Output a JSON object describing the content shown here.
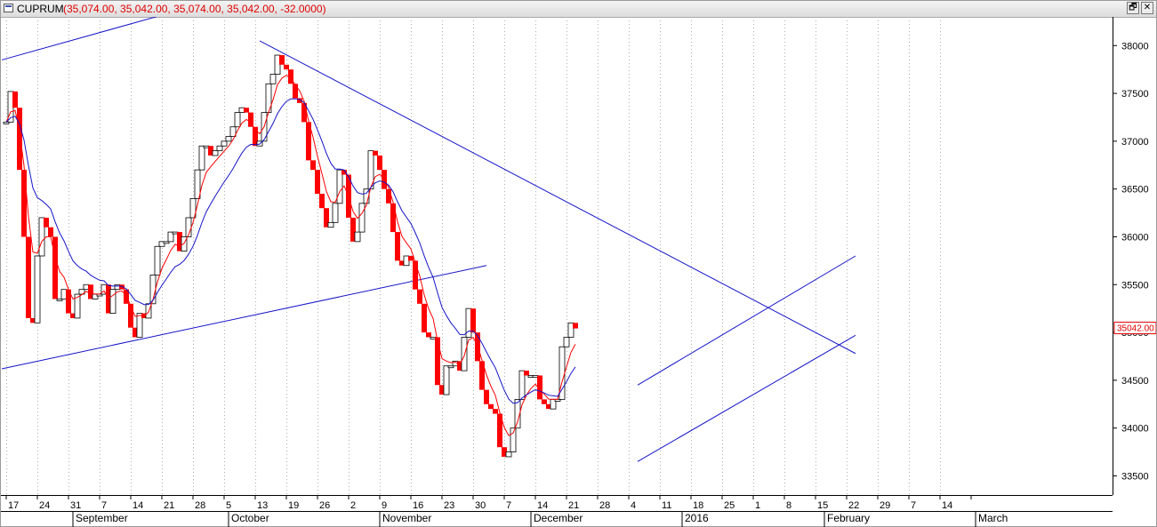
{
  "window": {
    "symbol": "CUPRUM",
    "ohlc_text": "(35,074.00, 35,042.00, 35,074.00, 35,042.00, -32.0000)",
    "restore_glyph": "🗗",
    "close_glyph": "✕"
  },
  "colors": {
    "up_candle": "#ffffff",
    "down_candle": "#ff0000",
    "ema_fast": "#ff0000",
    "ema_slow": "#1414c8",
    "trendline": "#1414c8",
    "grid": "#b0b0b0"
  },
  "chart_data": {
    "type": "candlestick",
    "title": "CUPRUM",
    "ylim": [
      33300,
      38300
    ],
    "y_ticks": [
      33500,
      34000,
      34500,
      35000,
      35500,
      36000,
      36500,
      37000,
      37500,
      38000
    ],
    "y_tick_labels": [
      "33500",
      "34000",
      "34500",
      "35000",
      "35500",
      "36000",
      "36500",
      "37000",
      "37500",
      "38000"
    ],
    "last_price_label": "35042.00",
    "last_price": 35042,
    "x_week_labels": [
      "17",
      "24",
      "31",
      "7",
      "14",
      "21",
      "28",
      "5",
      "13",
      "19",
      "26",
      "2",
      "9",
      "16",
      "23",
      "30",
      "7",
      "14",
      "21",
      "28",
      "4",
      "11",
      "18",
      "25",
      "1",
      "8",
      "15",
      "22",
      "29",
      "7",
      "14"
    ],
    "month_labels": [
      {
        "label": "September",
        "bar": 15
      },
      {
        "label": "October",
        "bar": 50
      },
      {
        "label": "November",
        "bar": 84
      },
      {
        "label": "December",
        "bar": 118
      },
      {
        "label": "2016",
        "bar": 152
      },
      {
        "label": "February",
        "bar": 184
      },
      {
        "label": "March",
        "bar": 218
      }
    ],
    "grid": "vertical-dotted",
    "closes": [
      37200,
      37520,
      37350,
      36700,
      36000,
      35150,
      35100,
      35800,
      36200,
      36100,
      36000,
      35350,
      35350,
      35450,
      35200,
      35150,
      35400,
      35450,
      35500,
      35350,
      35400,
      35400,
      35500,
      35200,
      35450,
      35500,
      35450,
      35300,
      35050,
      34950,
      35200,
      35150,
      35300,
      35600,
      35900,
      35950,
      35950,
      36050,
      36050,
      35850,
      36000,
      36200,
      36400,
      36700,
      36950,
      36950,
      36850,
      36900,
      36950,
      37000,
      37050,
      37150,
      37300,
      37350,
      37300,
      37150,
      36950,
      37000,
      37300,
      37600,
      37700,
      37900,
      37800,
      37750,
      37600,
      37450,
      37400,
      37200,
      36800,
      36700,
      36450,
      36300,
      36100,
      36150,
      36350,
      36700,
      36650,
      36200,
      35950,
      36050,
      36350,
      36500,
      36900,
      36850,
      36700,
      36500,
      36350,
      36050,
      35750,
      35700,
      35800,
      35750,
      35450,
      35300,
      35000,
      34950,
      34950,
      34450,
      34350,
      34650,
      34650,
      34700,
      34600,
      34950,
      35250,
      35000,
      34700,
      34400,
      34250,
      34200,
      34150,
      33800,
      33700,
      33750,
      34000,
      34300,
      34600,
      34550,
      34550,
      34550,
      34300,
      34250,
      34200,
      34300,
      34300,
      34850,
      34950,
      35100,
      35042
    ],
    "series": [
      {
        "name": "",
        "type": "candlestick",
        "values": [
          37200,
          37520,
          37350,
          36700,
          36000,
          35150,
          35100,
          35800,
          36200,
          36100,
          36000,
          35350,
          35350,
          35450,
          35200,
          35150,
          35400,
          35450,
          35500,
          35350,
          35400,
          35400,
          35500,
          35200,
          35450,
          35500,
          35450,
          35300,
          35050,
          34950,
          35200,
          35150,
          35300,
          35600,
          35900,
          35950,
          35950,
          36050,
          36050,
          35850,
          36000,
          36200,
          36400,
          36700,
          36950,
          36950,
          36850,
          36900,
          36950,
          37000,
          37050,
          37150,
          37300,
          37350,
          37300,
          37150,
          36950,
          37000,
          37300,
          37600,
          37700,
          37900,
          37800,
          37750,
          37600,
          37450,
          37400,
          37200,
          36800,
          36700,
          36450,
          36300,
          36100,
          36150,
          36350,
          36700,
          36650,
          36200,
          35950,
          36050,
          36350,
          36500,
          36900,
          36850,
          36700,
          36500,
          36350,
          36050,
          35750,
          35700,
          35800,
          35750,
          35450,
          35300,
          35000,
          34950,
          34950,
          34450,
          34350,
          34650,
          34650,
          34700,
          34600,
          34950,
          35250,
          35000,
          34700,
          34400,
          34250,
          34200,
          34150,
          33800,
          33700,
          33750,
          34000,
          34300,
          34600,
          34550,
          34550,
          34550,
          34300,
          34250,
          34200,
          34300,
          34300,
          34850,
          34950,
          35100,
          35042
        ]
      },
      {
        "name": "",
        "type": "ema",
        "period": 5
      },
      {
        "name": "",
        "type": "ema",
        "period": 13
      }
    ],
    "trendlines": [
      {
        "from": [
          -1,
          37850
        ],
        "to": [
          39,
          38370
        ]
      },
      {
        "from": [
          -1,
          34620
        ],
        "to": [
          108,
          35700
        ]
      },
      {
        "from": [
          57,
          38050
        ],
        "to": [
          191,
          34780
        ]
      },
      {
        "from": [
          142,
          34450
        ],
        "to": [
          191,
          35800
        ]
      },
      {
        "from": [
          142,
          33650
        ],
        "to": [
          191,
          34970
        ]
      }
    ]
  }
}
